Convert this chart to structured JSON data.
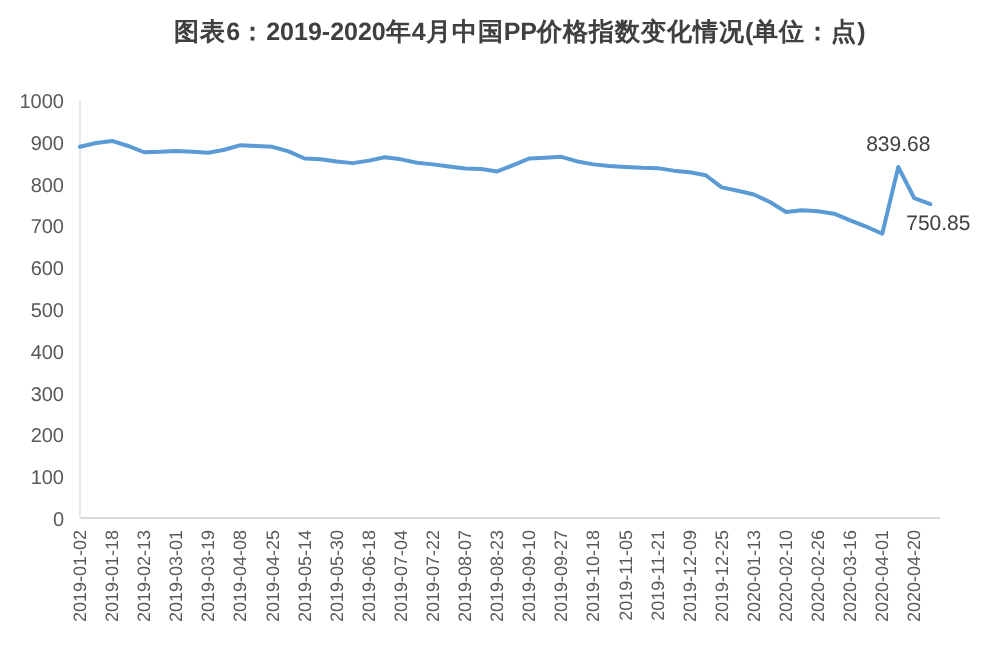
{
  "chart_data": {
    "type": "line",
    "title": "图表6：2019-2020年4月中国PP价格指数变化情况(单位：点)",
    "categories": [
      "2019-01-02",
      null,
      "2019-01-18",
      null,
      "2019-02-13",
      null,
      "2019-03-01",
      null,
      "2019-03-19",
      null,
      "2019-04-08",
      null,
      "2019-04-25",
      null,
      "2019-05-14",
      null,
      "2019-05-30",
      null,
      "2019-06-18",
      null,
      "2019-07-04",
      null,
      "2019-07-22",
      null,
      "2019-08-07",
      null,
      "2019-08-23",
      null,
      "2019-09-10",
      null,
      "2019-09-27",
      null,
      "2019-10-18",
      null,
      "2019-11-05",
      null,
      "2019-11-21",
      null,
      "2019-12-09",
      null,
      "2019-12-25",
      null,
      "2020-01-13",
      null,
      "2020-02-10",
      null,
      "2020-02-26",
      null,
      "2020-03-16",
      null,
      "2020-04-01",
      null,
      "2020-04-20",
      null
    ],
    "values": [
      888,
      897,
      902,
      890,
      875,
      876,
      878,
      876,
      874,
      881,
      892,
      890,
      888,
      877,
      860,
      858,
      853,
      849,
      855,
      863,
      858,
      850,
      846,
      841,
      836,
      835,
      829,
      844,
      860,
      862,
      864,
      853,
      846,
      842,
      840,
      838,
      837,
      831,
      827,
      820,
      791,
      783,
      774,
      756,
      732,
      736,
      734,
      728,
      712,
      697,
      680,
      839.68,
      765,
      750.85
    ],
    "value_labels": [
      null,
      null,
      null,
      null,
      null,
      null,
      null,
      null,
      null,
      null,
      null,
      null,
      null,
      null,
      null,
      null,
      null,
      null,
      null,
      null,
      null,
      null,
      null,
      null,
      null,
      null,
      null,
      null,
      null,
      null,
      null,
      null,
      null,
      null,
      null,
      null,
      null,
      null,
      null,
      null,
      null,
      null,
      null,
      null,
      null,
      null,
      null,
      null,
      null,
      null,
      null,
      "839.68",
      null,
      "750.85"
    ],
    "color": "#5b9bd5",
    "ylim": [
      0,
      1000
    ],
    "yticks": [
      0,
      100,
      200,
      300,
      400,
      500,
      600,
      700,
      800,
      900,
      1000
    ],
    "marker": "none",
    "line_style": "solid"
  }
}
